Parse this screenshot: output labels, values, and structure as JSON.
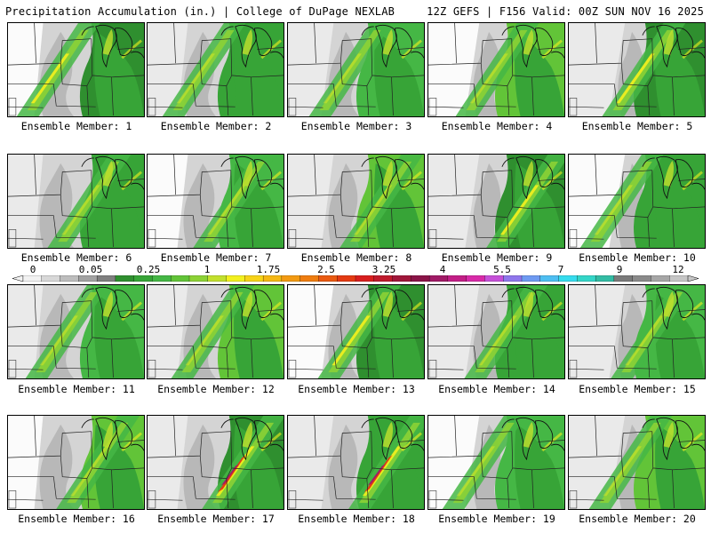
{
  "header": {
    "title_left": "Precipitation Accumulation (in.) | College of DuPage NEXLAB",
    "title_right": "12Z GEFS | F156 Valid: 00Z SUN NOV 16 2025"
  },
  "legend": {
    "tick_labels": [
      "0",
      "0.05",
      "0.25",
      "1",
      "1.75",
      "2.5",
      "3.25",
      "4",
      "5.5",
      "7",
      "9",
      "12"
    ],
    "colors": [
      "#f2f2f2",
      "#d8d8d8",
      "#bdbdbd",
      "#a2a2a2",
      "#7f7f7f",
      "#2f8f2f",
      "#37a437",
      "#45b745",
      "#62c438",
      "#8cd235",
      "#c2e02d",
      "#f3f01e",
      "#f7d318",
      "#f5b714",
      "#f39a12",
      "#ef7d10",
      "#ea5a10",
      "#e43a12",
      "#d81e1e",
      "#bf1a2c",
      "#a0163a",
      "#8a1448",
      "#a01a66",
      "#c21e86",
      "#d82aa8",
      "#c650d8",
      "#8f76ec",
      "#6e9af2",
      "#4ebef2",
      "#36dcee",
      "#34d6c8",
      "#33bca4",
      "#7a7a7a",
      "#8a8a8a",
      "#a6a6a6",
      "#c6c6c6"
    ]
  },
  "members": [
    {
      "label": "Ensemble Member: 1"
    },
    {
      "label": "Ensemble Member: 2"
    },
    {
      "label": "Ensemble Member: 3"
    },
    {
      "label": "Ensemble Member: 4"
    },
    {
      "label": "Ensemble Member: 5"
    },
    {
      "label": "Ensemble Member: 6"
    },
    {
      "label": "Ensemble Member: 7"
    },
    {
      "label": "Ensemble Member: 8"
    },
    {
      "label": "Ensemble Member: 9"
    },
    {
      "label": "Ensemble Member: 10"
    },
    {
      "label": "Ensemble Member: 11"
    },
    {
      "label": "Ensemble Member: 12"
    },
    {
      "label": "Ensemble Member: 13"
    },
    {
      "label": "Ensemble Member: 14"
    },
    {
      "label": "Ensemble Member: 15"
    },
    {
      "label": "Ensemble Member: 16"
    },
    {
      "label": "Ensemble Member: 17"
    },
    {
      "label": "Ensemble Member: 18"
    },
    {
      "label": "Ensemble Member: 19"
    },
    {
      "label": "Ensemble Member: 20"
    }
  ]
}
